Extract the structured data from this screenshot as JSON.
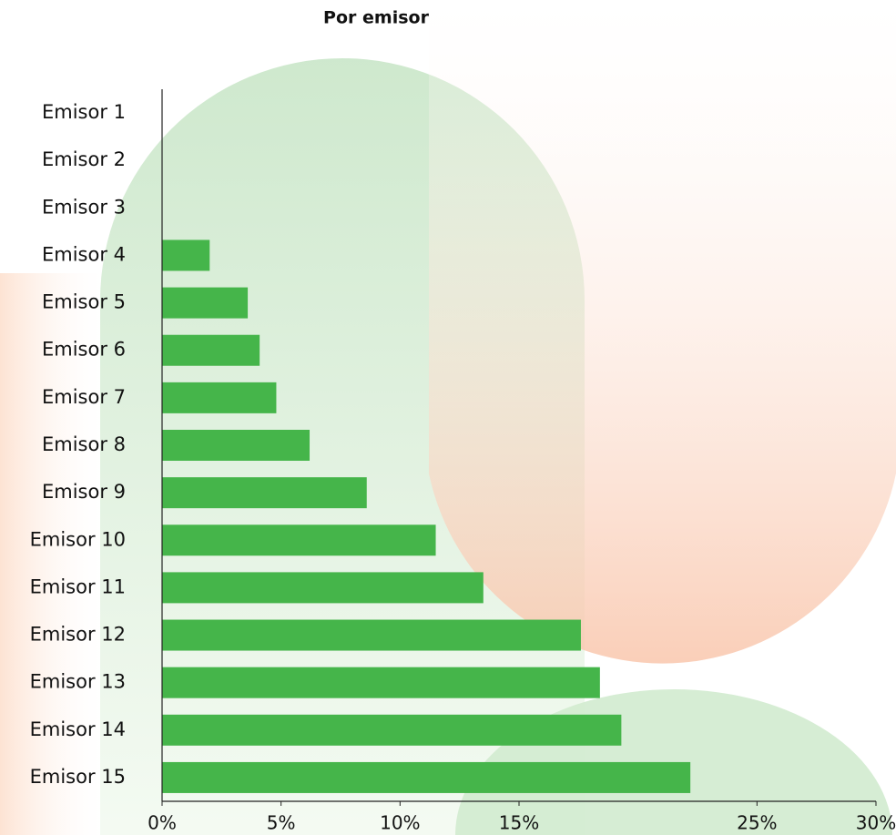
{
  "chart_data": {
    "type": "hbar",
    "title": "Por emisor",
    "categories": [
      "Emisor 1",
      "Emisor 2",
      "Emisor 3",
      "Emisor 4",
      "Emisor 5",
      "Emisor 6",
      "Emisor 7",
      "Emisor 8",
      "Emisor 9",
      "Emisor 10",
      "Emisor 11",
      "Emisor 12",
      "Emisor 13",
      "Emisor 14",
      "Emisor 15"
    ],
    "values": [
      0,
      0,
      0,
      2.0,
      3.6,
      4.1,
      4.8,
      6.2,
      8.6,
      11.5,
      13.5,
      17.6,
      18.4,
      19.3,
      22.2
    ],
    "color": "#45b54a",
    "xlim": [
      0,
      30
    ],
    "xticks": [
      {
        "value": 0,
        "label": "0%"
      },
      {
        "value": 5,
        "label": "5%"
      },
      {
        "value": 10,
        "label": "10%"
      },
      {
        "value": 15,
        "label": "15%"
      },
      {
        "value": 25,
        "label": "25%"
      },
      {
        "value": 30,
        "label": "30%"
      }
    ]
  }
}
